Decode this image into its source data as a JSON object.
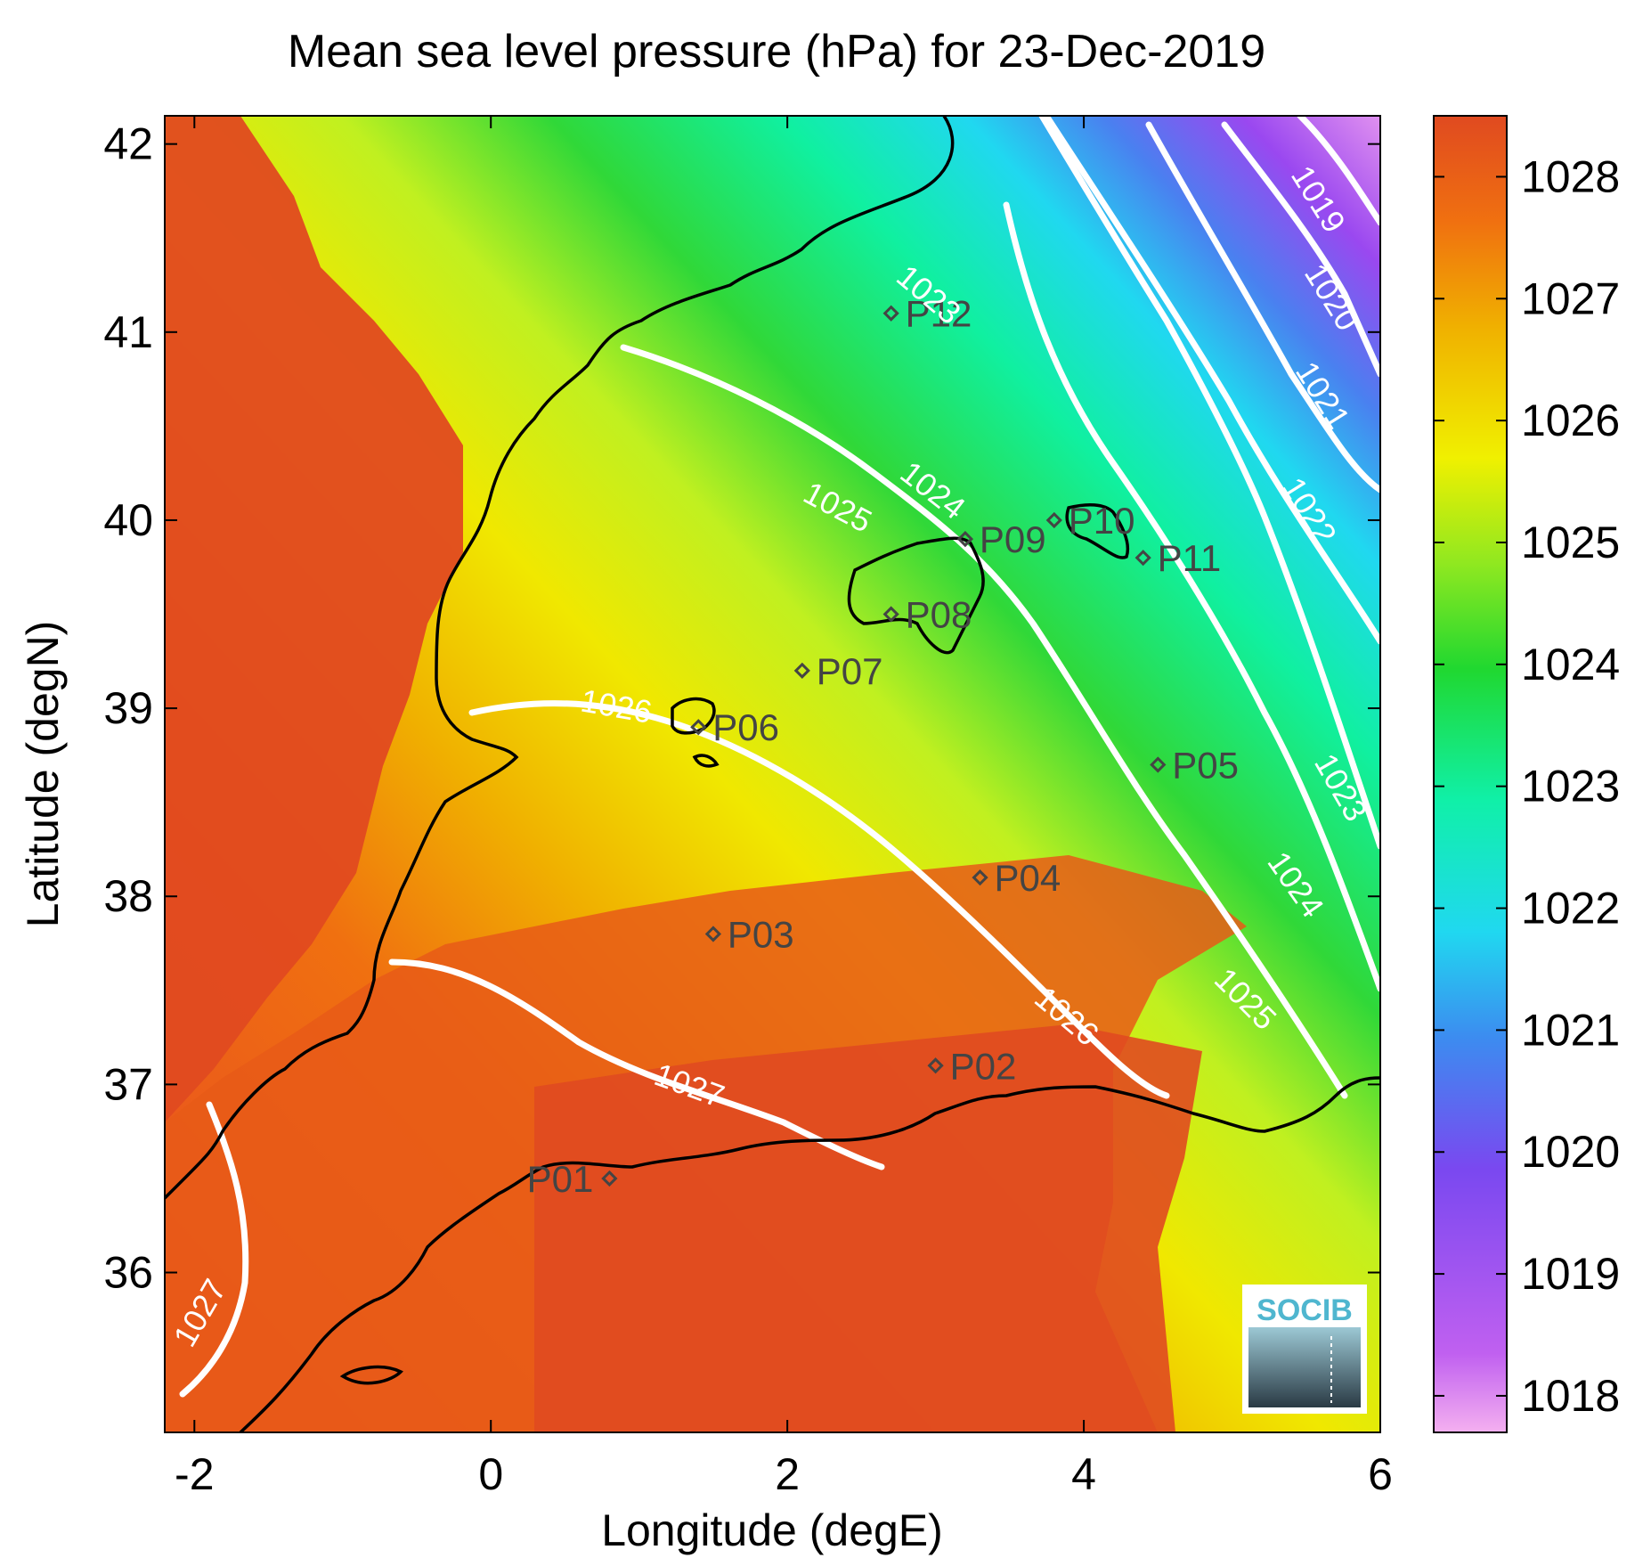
{
  "title": "Mean sea level pressure (hPa) for 23-Dec-2019",
  "xlabel": "Longitude (degE)",
  "ylabel": "Latitude (degN)",
  "x_ticks": [
    -2,
    0,
    2,
    4,
    6
  ],
  "y_ticks": [
    36,
    37,
    38,
    39,
    40,
    41,
    42
  ],
  "colorbar": {
    "ticks": [
      1018,
      1019,
      1020,
      1021,
      1022,
      1023,
      1024,
      1025,
      1026,
      1027,
      1028
    ],
    "range": [
      1017.7,
      1028.5
    ],
    "colors": [
      "#f0a0f0",
      "#a040f0",
      "#4a70f0",
      "#20d0f0",
      "#10f0b0",
      "#20e020",
      "#c0f020",
      "#f0e000",
      "#f07010",
      "#e04a20"
    ]
  },
  "logo_text": "SOCIB",
  "points": [
    {
      "label": "P01",
      "lon": 0.8,
      "lat": 36.5
    },
    {
      "label": "P02",
      "lon": 3.0,
      "lat": 37.1
    },
    {
      "label": "P03",
      "lon": 1.5,
      "lat": 37.8
    },
    {
      "label": "P04",
      "lon": 3.3,
      "lat": 38.1
    },
    {
      "label": "P05",
      "lon": 4.5,
      "lat": 38.7
    },
    {
      "label": "P06",
      "lon": 1.4,
      "lat": 38.9
    },
    {
      "label": "P07",
      "lon": 2.1,
      "lat": 39.2
    },
    {
      "label": "P08",
      "lon": 2.7,
      "lat": 39.5
    },
    {
      "label": "P09",
      "lon": 3.2,
      "lat": 39.9
    },
    {
      "label": "P10",
      "lon": 3.8,
      "lat": 40.0
    },
    {
      "label": "P11",
      "lon": 4.4,
      "lat": 39.8
    },
    {
      "label": "P12",
      "lon": 2.7,
      "lat": 41.1
    }
  ],
  "contour_labels": [
    "1019",
    "1020",
    "1021",
    "1022",
    "1023",
    "1024",
    "1024",
    "1025",
    "1025",
    "1026",
    "1026",
    "1027",
    "1027",
    "1023"
  ]
}
